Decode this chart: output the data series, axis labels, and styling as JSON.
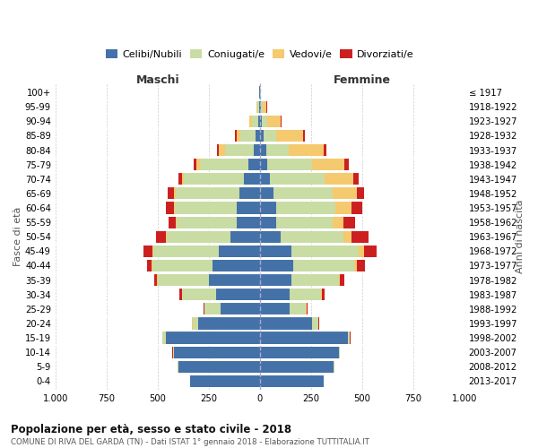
{
  "age_groups": [
    "0-4",
    "5-9",
    "10-14",
    "15-19",
    "20-24",
    "25-29",
    "30-34",
    "35-39",
    "40-44",
    "45-49",
    "50-54",
    "55-59",
    "60-64",
    "65-69",
    "70-74",
    "75-79",
    "80-84",
    "85-89",
    "90-94",
    "95-99",
    "100+"
  ],
  "birth_years": [
    "2013-2017",
    "2008-2012",
    "2003-2007",
    "1998-2002",
    "1993-1997",
    "1988-1992",
    "1983-1987",
    "1978-1982",
    "1973-1977",
    "1968-1972",
    "1963-1967",
    "1958-1962",
    "1953-1957",
    "1948-1952",
    "1943-1947",
    "1938-1942",
    "1933-1937",
    "1928-1932",
    "1923-1927",
    "1918-1922",
    "≤ 1917"
  ],
  "maschi": {
    "celibi": [
      340,
      400,
      420,
      460,
      300,
      190,
      215,
      250,
      230,
      200,
      145,
      115,
      115,
      100,
      80,
      55,
      30,
      20,
      10,
      5,
      2
    ],
    "coniugati": [
      2,
      3,
      5,
      15,
      30,
      80,
      165,
      250,
      295,
      320,
      310,
      290,
      300,
      310,
      290,
      240,
      140,
      75,
      30,
      8,
      2
    ],
    "vedovi": [
      1,
      1,
      1,
      1,
      1,
      1,
      2,
      3,
      3,
      5,
      5,
      5,
      5,
      10,
      10,
      15,
      30,
      20,
      10,
      3,
      1
    ],
    "divorziati": [
      0,
      0,
      1,
      1,
      2,
      5,
      10,
      15,
      25,
      45,
      50,
      35,
      40,
      30,
      20,
      15,
      10,
      5,
      2,
      0,
      0
    ]
  },
  "femmine": {
    "nubili": [
      310,
      360,
      385,
      430,
      255,
      145,
      145,
      155,
      165,
      155,
      100,
      80,
      80,
      65,
      50,
      35,
      30,
      20,
      10,
      5,
      2
    ],
    "coniugate": [
      2,
      3,
      5,
      10,
      30,
      80,
      155,
      230,
      295,
      330,
      310,
      275,
      290,
      290,
      265,
      220,
      110,
      60,
      25,
      8,
      2
    ],
    "vedove": [
      1,
      1,
      1,
      1,
      2,
      3,
      5,
      8,
      15,
      25,
      40,
      55,
      80,
      120,
      140,
      160,
      170,
      130,
      65,
      20,
      3
    ],
    "divorziate": [
      0,
      0,
      0,
      1,
      2,
      5,
      10,
      20,
      40,
      60,
      80,
      55,
      50,
      35,
      30,
      20,
      15,
      10,
      5,
      2,
      0
    ]
  },
  "colors": {
    "celibi": "#4472a8",
    "coniugati": "#c8dca4",
    "vedovi": "#f5c96e",
    "divorziati": "#cc2020"
  },
  "xlim": 1000,
  "title": "Popolazione per età, sesso e stato civile - 2018",
  "subtitle": "COMUNE DI RIVA DEL GARDA (TN) - Dati ISTAT 1° gennaio 2018 - Elaborazione TUTTITALIA.IT",
  "ylabel_left": "Fasce di età",
  "ylabel_right": "Anni di nascita",
  "xlabel_left": "Maschi",
  "xlabel_right": "Femmine"
}
